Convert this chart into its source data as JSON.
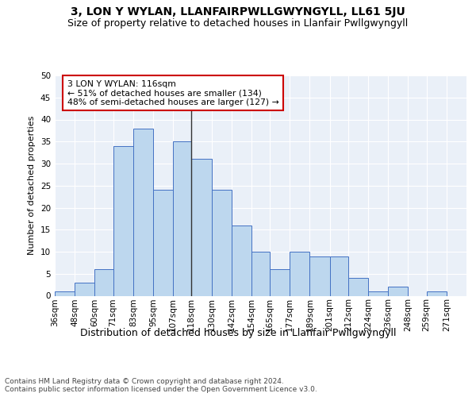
{
  "title": "3, LON Y WYLAN, LLANFAIRPWLLGWYNGYLL, LL61 5JU",
  "subtitle": "Size of property relative to detached houses in Llanfair Pwllgwyngyll",
  "xlabel": "Distribution of detached houses by size in Llanfair Pwllgwyngyll",
  "ylabel": "Number of detached properties",
  "bar_color": "#bdd7ee",
  "bar_edge_color": "#4472c4",
  "background_color": "#ffffff",
  "plot_bg_color": "#eaf0f8",
  "grid_color": "#ffffff",
  "annotation_text": "3 LON Y WYLAN: 116sqm\n← 51% of detached houses are smaller (134)\n48% of semi-detached houses are larger (127) →",
  "annotation_box_color": "#ffffff",
  "annotation_box_edge_color": "#cc0000",
  "vline_x": 118,
  "vline_color": "#333333",
  "footer_text": "Contains HM Land Registry data © Crown copyright and database right 2024.\nContains public sector information licensed under the Open Government Licence v3.0.",
  "categories": [
    "36sqm",
    "48sqm",
    "60sqm",
    "71sqm",
    "83sqm",
    "95sqm",
    "107sqm",
    "118sqm",
    "130sqm",
    "142sqm",
    "154sqm",
    "165sqm",
    "177sqm",
    "189sqm",
    "201sqm",
    "212sqm",
    "224sqm",
    "236sqm",
    "248sqm",
    "259sqm",
    "271sqm"
  ],
  "bar_lefts": [
    36,
    48,
    60,
    71,
    83,
    95,
    107,
    118,
    130,
    142,
    154,
    165,
    177,
    189,
    201,
    212,
    224,
    236,
    248,
    259,
    271
  ],
  "bar_widths": [
    12,
    12,
    11,
    12,
    12,
    12,
    11,
    12,
    12,
    12,
    11,
    12,
    12,
    12,
    11,
    12,
    12,
    12,
    11,
    12,
    12
  ],
  "values": [
    1,
    3,
    6,
    34,
    38,
    24,
    35,
    31,
    24,
    16,
    10,
    6,
    10,
    9,
    9,
    4,
    1,
    2,
    0,
    1,
    0
  ],
  "ylim": [
    0,
    50
  ],
  "yticks": [
    0,
    5,
    10,
    15,
    20,
    25,
    30,
    35,
    40,
    45,
    50
  ],
  "xlim": [
    36,
    283
  ],
  "title_fontsize": 10,
  "subtitle_fontsize": 9,
  "xlabel_fontsize": 9,
  "ylabel_fontsize": 8,
  "tick_fontsize": 7.5,
  "footer_fontsize": 6.5,
  "ann_fontsize": 7.8
}
